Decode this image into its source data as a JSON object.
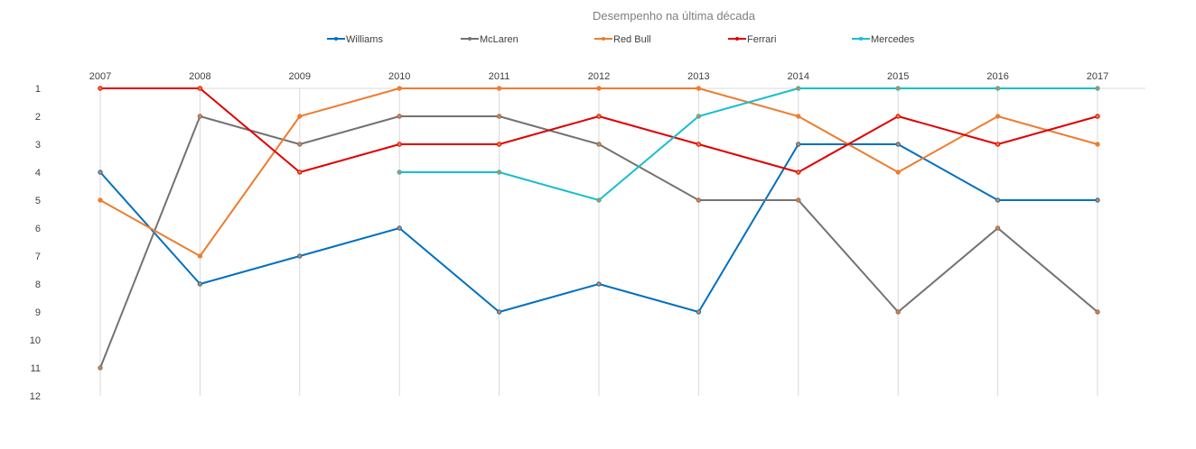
{
  "chart_data": {
    "type": "line",
    "title": "Desempenho  na última década",
    "xlabel": "",
    "ylabel": "",
    "x": [
      "2007",
      "2008",
      "2009",
      "2010",
      "2011",
      "2012",
      "2013",
      "2014",
      "2015",
      "2016",
      "2017"
    ],
    "y_ticks": [
      "1",
      "2",
      "3",
      "4",
      "5",
      "6",
      "7",
      "8",
      "9",
      "10",
      "11",
      "12"
    ],
    "ylim": [
      1,
      12
    ],
    "y_inverted": true,
    "x_axis_position": "top",
    "grid": "vertical",
    "legend_position": "top",
    "series": [
      {
        "name": "Williams",
        "color": "#0070c0",
        "values": [
          4,
          8,
          7,
          6,
          9,
          8,
          9,
          3,
          3,
          5,
          5
        ]
      },
      {
        "name": "McLaren",
        "color": "#767171",
        "values": [
          11,
          2,
          3,
          2,
          2,
          3,
          5,
          5,
          9,
          6,
          9
        ]
      },
      {
        "name": "Red Bull",
        "color": "#ed7d31",
        "values": [
          5,
          7,
          2,
          1,
          1,
          1,
          1,
          2,
          4,
          2,
          3
        ]
      },
      {
        "name": "Ferrari",
        "color": "#e00000",
        "values": [
          1,
          1,
          4,
          3,
          3,
          2,
          3,
          4,
          2,
          3,
          2
        ]
      },
      {
        "name": "Mercedes",
        "color": "#17becf",
        "values": [
          null,
          null,
          null,
          4,
          4,
          5,
          2,
          1,
          1,
          1,
          1
        ]
      }
    ]
  }
}
